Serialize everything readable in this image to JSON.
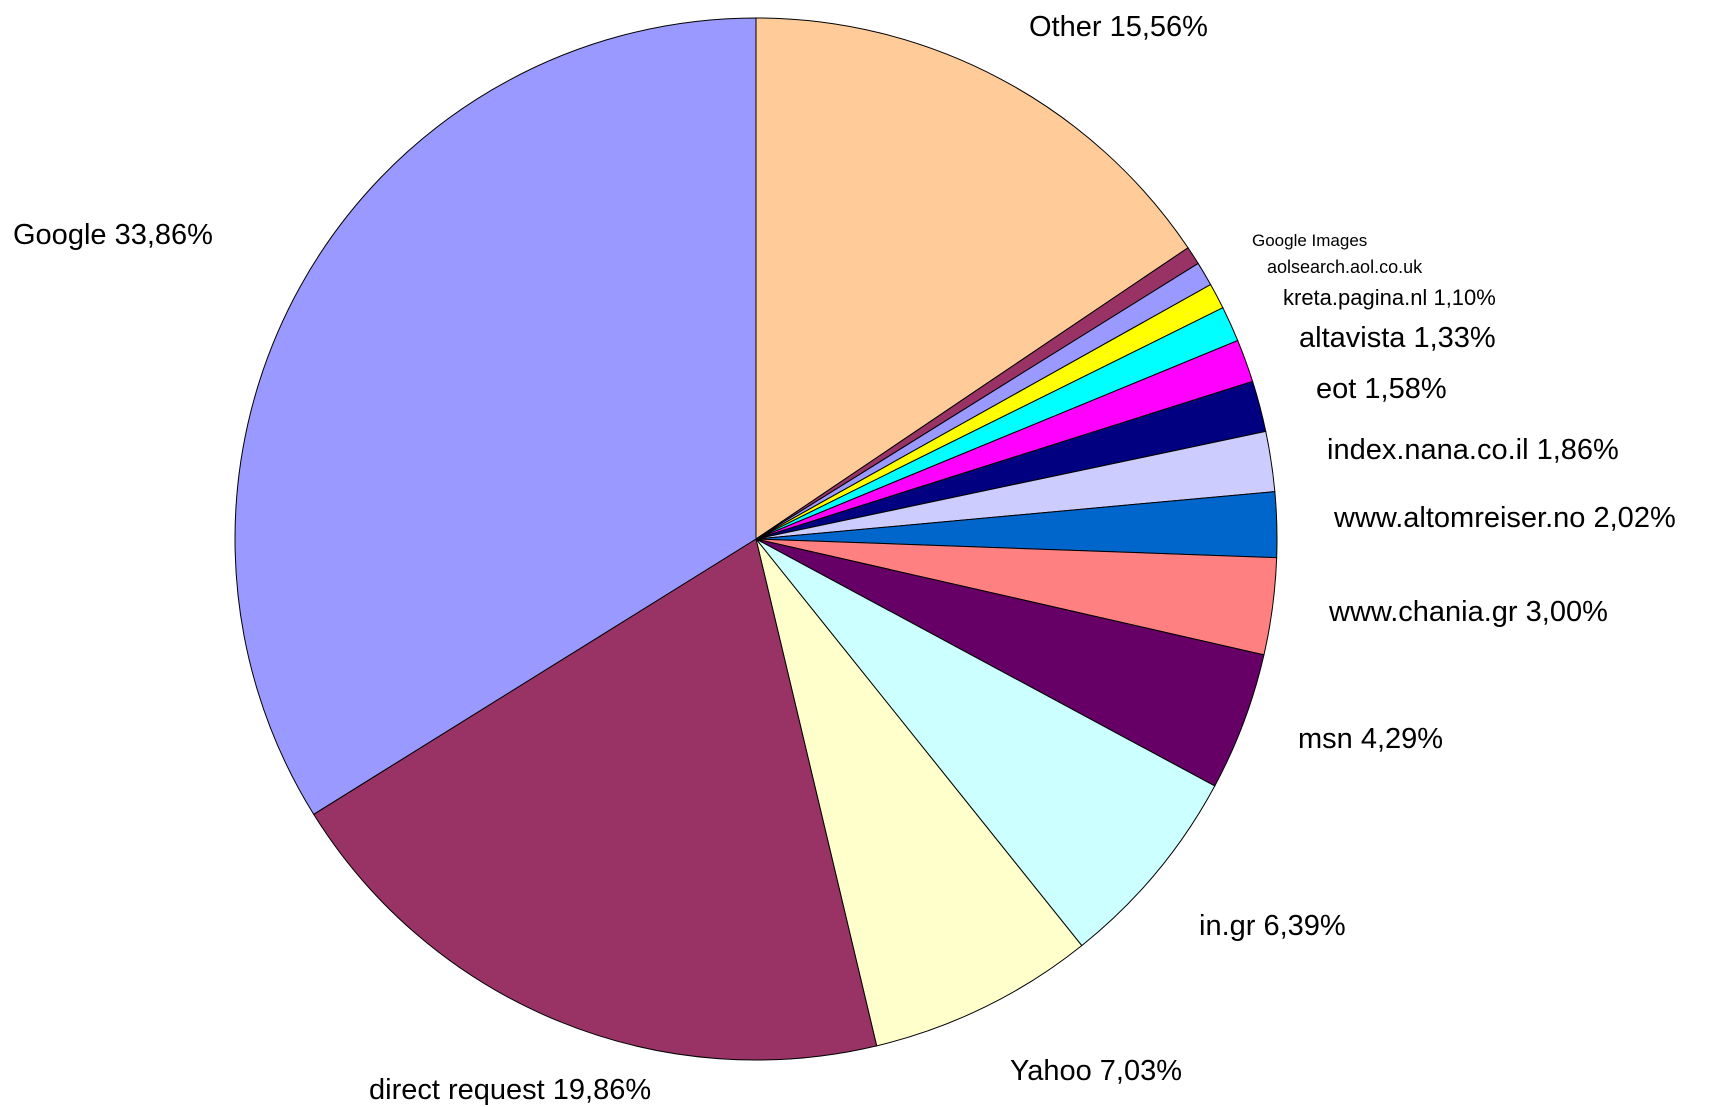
{
  "chart_data": {
    "type": "pie",
    "categories": [
      "Other",
      null,
      "Google Images",
      "aolsearch.aol.co.uk",
      "kreta.pagina.nl",
      "altavista",
      "eot",
      "index.nana.co.il",
      "www.altomreiser.no",
      "www.chania.gr",
      "msn",
      "in.gr",
      "Yahoo",
      "direct request",
      "Google"
    ],
    "values": [
      15.56,
      0.57,
      0.75,
      0.8,
      1.1,
      1.33,
      1.58,
      1.86,
      2.02,
      3.0,
      4.29,
      6.39,
      7.03,
      19.86,
      33.86
    ],
    "value_labels": [
      "15,56%",
      null,
      null,
      null,
      "1,10%",
      "1,33%",
      "1,58%",
      "1,86%",
      "2,02%",
      "3,00%",
      "4,29%",
      "6,39%",
      "7,03%",
      "19,86%",
      "33,86%"
    ],
    "colors": [
      "#FFCC99",
      "#993366",
      "#9999FF",
      "#FFFF00",
      "#00FFFF",
      "#FF00FF",
      "#000080",
      "#CCCCFF",
      "#0066CC",
      "#FF8080",
      "#660066",
      "#CCFFFF",
      "#FFFFCC",
      "#993366",
      "#9999FF"
    ]
  }
}
